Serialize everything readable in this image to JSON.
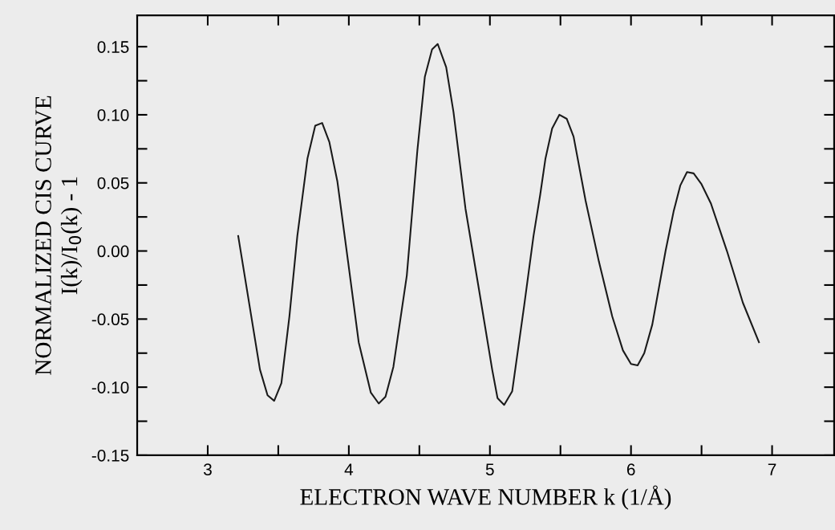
{
  "chart_data": {
    "type": "line",
    "xlabel": "ELECTRON WAVE NUMBER k (1/Å)",
    "ylabel": "NORMALIZED CIS CURVE\nI(k)/I$_{0}$(k) - 1",
    "x": [
      3.216,
      3.37,
      3.424,
      3.471,
      3.522,
      3.579,
      3.635,
      3.707,
      3.762,
      3.811,
      3.862,
      3.919,
      3.995,
      4.07,
      4.156,
      4.212,
      4.26,
      4.316,
      4.411,
      4.486,
      4.539,
      4.59,
      4.63,
      4.69,
      4.742,
      4.827,
      4.922,
      5.016,
      5.054,
      5.101,
      5.158,
      5.243,
      5.309,
      5.356,
      5.394,
      5.441,
      5.492,
      5.545,
      5.593,
      5.678,
      5.773,
      5.867,
      5.943,
      6.0,
      6.047,
      6.094,
      6.151,
      6.245,
      6.302,
      6.349,
      6.397,
      6.444,
      6.5,
      6.566,
      6.68,
      6.793,
      6.907
    ],
    "series": [
      {
        "color": "#1a1a1a",
        "values": [
          0.011,
          -0.087,
          -0.106,
          -0.11,
          -0.097,
          -0.048,
          0.011,
          0.068,
          0.092,
          0.094,
          0.08,
          0.051,
          -0.008,
          -0.067,
          -0.104,
          -0.112,
          -0.107,
          -0.085,
          -0.018,
          0.074,
          0.128,
          0.148,
          0.152,
          0.135,
          0.102,
          0.031,
          -0.028,
          -0.087,
          -0.108,
          -0.113,
          -0.103,
          -0.04,
          0.011,
          0.041,
          0.068,
          0.09,
          0.1,
          0.097,
          0.084,
          0.037,
          -0.008,
          -0.048,
          -0.073,
          -0.083,
          -0.084,
          -0.075,
          -0.054,
          0.0,
          0.029,
          0.048,
          0.058,
          0.057,
          0.049,
          0.035,
          0.0,
          -0.038,
          -0.067
        ]
      }
    ],
    "xlim": [
      2.5,
      7.44
    ],
    "ylim": [
      -0.15,
      0.173
    ],
    "xticks": [
      3,
      {
        "value": 3.5,
        "label": null
      },
      4,
      {
        "value": 4.5,
        "label": null
      },
      5,
      {
        "value": 5.5,
        "label": null
      },
      6,
      {
        "value": 6.5,
        "label": null
      },
      7
    ],
    "yticks": [
      {
        "value": -0.15,
        "label": "-0.15"
      },
      {
        "value": -0.125,
        "label": null
      },
      {
        "value": -0.1,
        "label": "-0.10"
      },
      {
        "value": -0.075,
        "label": null
      },
      {
        "value": -0.05,
        "label": "-0.05"
      },
      {
        "value": -0.025,
        "label": null
      },
      {
        "value": 0,
        "label": "0.00"
      },
      {
        "value": 0.025,
        "label": null
      },
      {
        "value": 0.05,
        "label": "0.05"
      },
      {
        "value": 0.075,
        "label": null
      },
      {
        "value": 0.1,
        "label": "0.10"
      },
      {
        "value": 0.125,
        "label": null
      },
      {
        "value": 0.15,
        "label": "0.15"
      }
    ],
    "grid": false,
    "marker": "none",
    "line_style": "solid"
  }
}
